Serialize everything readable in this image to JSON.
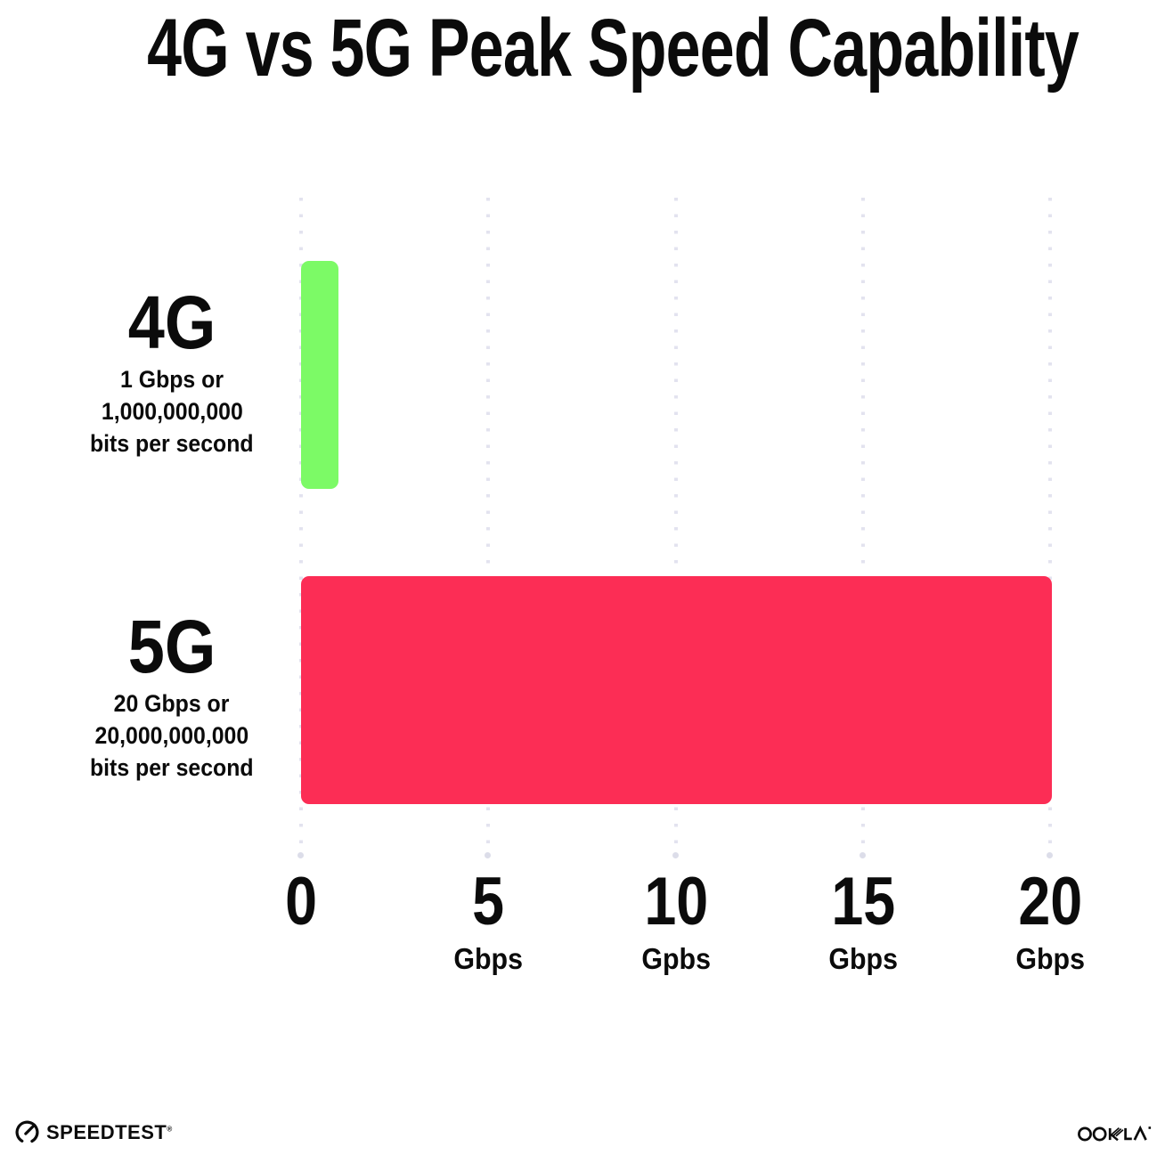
{
  "title": "4G vs 5G Peak Speed Capability",
  "rows": [
    {
      "label": "4G",
      "sub_lines": [
        "1 Gbps or",
        "1,000,000,000",
        "bits per second"
      ]
    },
    {
      "label": "5G",
      "sub_lines": [
        "20 Gbps or",
        "20,000,000,000",
        "bits per second"
      ]
    }
  ],
  "x_axis": {
    "ticks": [
      {
        "label": "0",
        "unit": ""
      },
      {
        "label": "5",
        "unit": "Gbps"
      },
      {
        "label": "10",
        "unit": "Gpbs"
      },
      {
        "label": "15",
        "unit": "Gbps"
      },
      {
        "label": "20",
        "unit": "Gbps"
      }
    ]
  },
  "footer": {
    "speedtest_label": "SPEEDTEST",
    "speedtest_mark": "®",
    "ookla_label": "OOKLA"
  },
  "colors": {
    "bar_4g": "#7CFA66",
    "bar_5g": "#FC2D55",
    "gridline": "#E3E3EF",
    "text": "#0B0B0B",
    "background": "#FFFFFF"
  },
  "chart_data": {
    "type": "bar",
    "orientation": "horizontal",
    "title": "4G vs 5G Peak Speed Capability",
    "categories": [
      "4G",
      "5G"
    ],
    "values": [
      1,
      20
    ],
    "value_descriptions": [
      "1 Gbps or 1,000,000,000 bits per second",
      "20 Gbps or 20,000,000,000 bits per second"
    ],
    "unit": "Gbps",
    "xlim": [
      0,
      20
    ],
    "x_tick_values": [
      0,
      5,
      10,
      15,
      20
    ],
    "x_tick_labels": [
      "0",
      "5 Gbps",
      "10 Gpbs",
      "15 Gbps",
      "20 Gbps"
    ],
    "bar_colors": [
      "#7CFA66",
      "#FC2D55"
    ],
    "grid": "dotted vertical gridlines at ticks",
    "legend": "none"
  }
}
